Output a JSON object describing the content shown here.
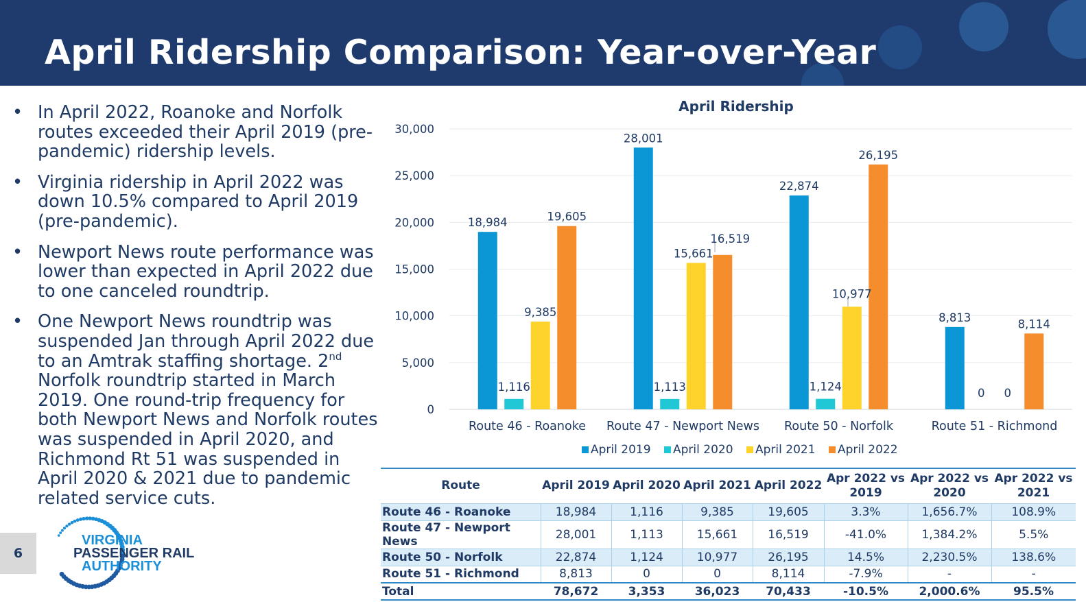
{
  "title": "April Ridership Comparison: Year-over-Year",
  "page_number": "6",
  "bullets": {
    "b1": "In April 2022, Roanoke and Norfolk routes exceeded their April 2019 (pre-pandemic) ridership levels.",
    "b2": "Virginia ridership in April 2022 was down 10.5% compared to April 2019 (pre-pandemic).",
    "b3": "Newport News route performance was lower than expected in April 2022 due to one canceled roundtrip.",
    "b4a": "One Newport News roundtrip was suspended Jan through April 2022 due to an Amtrak staffing shortage. 2",
    "b4sup": "nd",
    "b4b": " Norfolk roundtrip started in March 2019. One round-trip frequency for both Newport News and Norfolk routes was suspended in April 2020, and Richmond Rt 51 was suspended in April 2020 & 2021 due to pandemic related service cuts."
  },
  "logo": {
    "line1": "VIRGINIA",
    "line2": "PASSENGER RAIL",
    "line3": "AUTHORITY"
  },
  "colors": {
    "header_bg": "#1f3b6e",
    "april_2019": "#0b96d6",
    "april_2020": "#1fc8d4",
    "april_2021": "#fdd22b",
    "april_2022": "#f58d2c",
    "text": "#1f3a64"
  },
  "chart_data": {
    "type": "bar",
    "title": "April Ridership",
    "categories": [
      "Route 46 - Roanoke",
      "Route 47 - Newport News",
      "Route 50 - Norfolk",
      "Route 51 - Richmond"
    ],
    "series": [
      {
        "name": "April 2019",
        "values": [
          18984,
          28001,
          22874,
          8813
        ],
        "labels": [
          "18,984",
          "28,001",
          "22,874",
          "8,813"
        ]
      },
      {
        "name": "April 2020",
        "values": [
          1116,
          1113,
          1124,
          0
        ],
        "labels": [
          "1,116",
          "1,113",
          "1,124",
          "0"
        ]
      },
      {
        "name": "April 2021",
        "values": [
          9385,
          15661,
          10977,
          0
        ],
        "labels": [
          "9,385",
          "15,661",
          "10,977",
          "0"
        ]
      },
      {
        "name": "April 2022",
        "values": [
          19605,
          16519,
          26195,
          8114
        ],
        "labels": [
          "19,605",
          "16,519",
          "26,195",
          "8,114"
        ]
      }
    ],
    "y_ticks": [
      0,
      5000,
      10000,
      15000,
      20000,
      25000,
      30000
    ],
    "y_tick_labels": [
      "0",
      "5,000",
      "10,000",
      "15,000",
      "20,000",
      "25,000",
      "30,000"
    ],
    "ylim": [
      0,
      30000
    ],
    "xlabel": "",
    "ylabel": "",
    "grid": true,
    "legend_position": "bottom"
  },
  "table": {
    "headers": [
      "Route",
      "April 2019",
      "April 2020",
      "April 2021",
      "April 2022",
      "Apr 2022 vs 2019",
      "Apr 2022 vs 2020",
      "Apr 2022 vs 2021"
    ],
    "rows": [
      [
        "Route 46 - Roanoke",
        "18,984",
        "1,116",
        "9,385",
        "19,605",
        "3.3%",
        "1,656.7%",
        "108.9%"
      ],
      [
        "Route 47 - Newport News",
        "28,001",
        "1,113",
        "15,661",
        "16,519",
        "-41.0%",
        "1,384.2%",
        "5.5%"
      ],
      [
        "Route 50 - Norfolk",
        "22,874",
        "1,124",
        "10,977",
        "26,195",
        "14.5%",
        "2,230.5%",
        "138.6%"
      ],
      [
        "Route 51 - Richmond",
        "8,813",
        "0",
        "0",
        "8,114",
        "-7.9%",
        "-",
        "-"
      ]
    ],
    "total": [
      "Total",
      "78,672",
      "3,353",
      "36,023",
      "70,433",
      "-10.5%",
      "2,000.6%",
      "95.5%"
    ]
  }
}
